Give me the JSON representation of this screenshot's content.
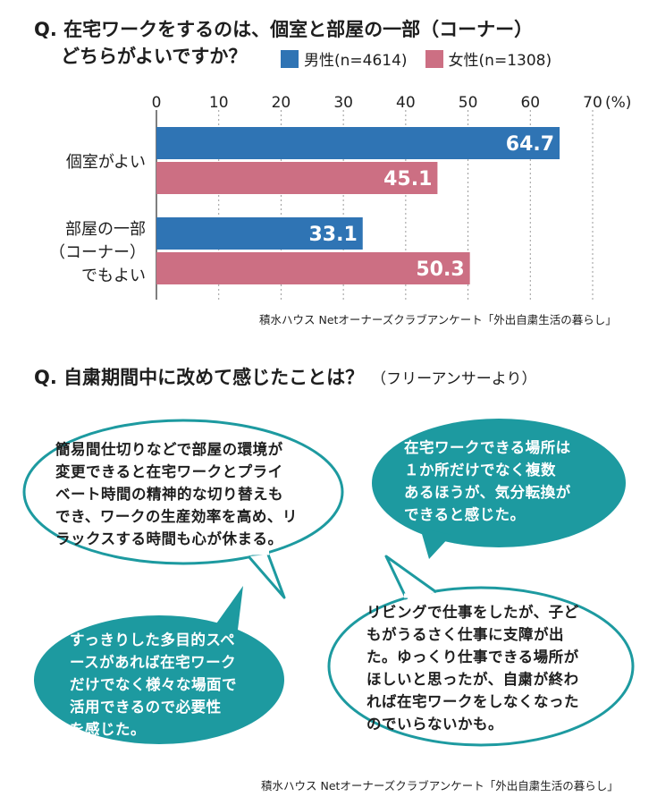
{
  "question1": {
    "line1": "Q. 在宅ワークをするのは、個室と部屋の一部（コーナー）",
    "line2": "どちらがよいですか？"
  },
  "colors": {
    "male": "#2f74b4",
    "female": "#cc6f83",
    "teal": "#1d9aa0"
  },
  "chart_data": {
    "type": "bar",
    "orientation": "horizontal",
    "categories": [
      "個室がよい",
      "部屋の一部（コーナー）でもよい"
    ],
    "category_label_lines": [
      [
        "個室がよい"
      ],
      [
        "部屋の一部",
        "（コーナー）",
        "でもよい"
      ]
    ],
    "series": [
      {
        "name": "男性(n=4614)",
        "values": [
          64.7,
          33.1
        ]
      },
      {
        "name": "女性(n=1308)",
        "values": [
          45.1,
          50.3
        ]
      }
    ],
    "xticks": [
      "0",
      "10",
      "20",
      "30",
      "40",
      "50",
      "60",
      "70"
    ],
    "unit": "(%)",
    "xlim": [
      0,
      70
    ],
    "grid": true,
    "legend_position": "top-right"
  },
  "source1": "積水ハウス Netオーナーズクラブアンケート「外出自粛生活の暮らし」",
  "question2": {
    "title": "Q. 自粛期間中に改めて感じたことは？",
    "note": "（フリーアンサーより）"
  },
  "bubbles": [
    {
      "lines": [
        "簡易間仕切りなどで部屋の環境が",
        "変更できると在宅ワークとプライ",
        "ベート時間の精神的な切り替えも",
        "でき、ワークの生産効率を高め、リ",
        "ラックスする時間も心が休まる。"
      ]
    },
    {
      "lines": [
        "在宅ワークできる場所は",
        "１か所だけでなく複数",
        "あるほうが、気分転換が",
        "できると感じた。"
      ]
    },
    {
      "lines": [
        "すっきりした多目的スペ",
        "ースがあれば在宅ワーク",
        "だけでなく様々な場面で",
        "活用できるので必要性",
        "を感じた。"
      ]
    },
    {
      "lines": [
        "リビングで仕事をしたが、子ど",
        "もがうるさく仕事に支障が出",
        "た。ゆっくり仕事できる場所が",
        "ほしいと思ったが、自粛が終わ",
        "れば在宅ワークをしなくなった",
        "のでいらないかも。"
      ]
    }
  ],
  "source2": "積水ハウス Netオーナーズクラブアンケート「外出自粛生活の暮らし」"
}
